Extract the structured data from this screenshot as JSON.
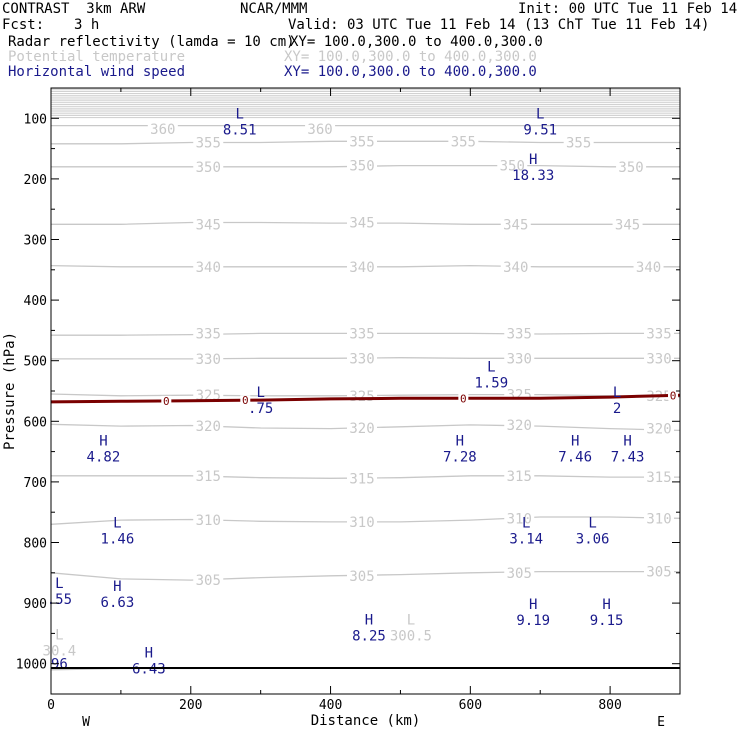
{
  "header": {
    "model": "CONTRAST  3km ARW",
    "org": "NCAR/MMM",
    "init": "Init: 00 UTC Tue 11 Feb 14",
    "fcst_label": "Fcst:",
    "fcst_value": "3 h",
    "valid": "Valid: 03 UTC Tue 11 Feb 14 (13 ChT Tue 11 Feb 14)",
    "fields": [
      {
        "name": "Radar reflectivity (lamda = 10 cm)",
        "xy": "XY= 100.0,300.0 to 400.0,300.0",
        "color": "#000000"
      },
      {
        "name": "Potential temperature",
        "xy": "XY= 100.0,300.0 to 400.0,300.0",
        "color": "#c8c8c8"
      },
      {
        "name": "Horizontal wind speed",
        "xy": "XY= 100.0,300.0 to 400.0,300.0",
        "color": "#1a1a8c"
      }
    ]
  },
  "chart_data": {
    "type": "contour-cross-section",
    "xlabel": "Distance (km)",
    "ylabel": "Pressure (hPa)",
    "xlim": [
      0,
      900
    ],
    "ylim": [
      1050,
      50
    ],
    "xticks": [
      0,
      200,
      400,
      600,
      800
    ],
    "yticks": [
      100,
      200,
      300,
      400,
      500,
      600,
      700,
      800,
      900,
      1000
    ],
    "left_end": "W",
    "right_end": "E",
    "theta_contours": [
      {
        "level": 300,
        "p": [
          1010,
          1008,
          1008,
          1007,
          1007,
          1007,
          1007,
          1007,
          1007,
          1007
        ]
      },
      {
        "level": 305,
        "p": [
          850,
          860,
          862,
          858,
          855,
          853,
          850,
          848,
          848,
          848
        ]
      },
      {
        "level": 310,
        "p": [
          770,
          763,
          762,
          765,
          766,
          766,
          763,
          758,
          758,
          760
        ]
      },
      {
        "level": 315,
        "p": [
          690,
          690,
          690,
          693,
          694,
          693,
          690,
          690,
          692,
          692
        ]
      },
      {
        "level": 320,
        "p": [
          605,
          608,
          607,
          611,
          612,
          609,
          606,
          608,
          612,
          615
        ]
      },
      {
        "level": 325,
        "p": [
          555,
          558,
          557,
          558,
          558,
          557,
          556,
          556,
          558,
          560
        ]
      },
      {
        "level": 330,
        "p": [
          497,
          497,
          497,
          496,
          496,
          495,
          496,
          496,
          496,
          496
        ]
      },
      {
        "level": 335,
        "p": [
          458,
          458,
          457,
          455,
          455,
          455,
          455,
          456,
          455,
          455
        ]
      },
      {
        "level": 340,
        "p": [
          343,
          345,
          345,
          345,
          345,
          345,
          343,
          345,
          345,
          345
        ]
      },
      {
        "level": 345,
        "p": [
          275,
          275,
          272,
          272,
          273,
          273,
          275,
          275,
          275,
          275
        ]
      },
      {
        "level": 350,
        "p": [
          180,
          180,
          180,
          180,
          180,
          178,
          178,
          178,
          180,
          180
        ]
      },
      {
        "level": 355,
        "p": [
          142,
          142,
          140,
          140,
          138,
          138,
          138,
          140,
          140,
          140
        ]
      },
      {
        "level": 360,
        "p": [
          112,
          112,
          112,
          112,
          112,
          112,
          112,
          112,
          112,
          112
        ]
      }
    ],
    "theta_labels": [
      {
        "text": "360",
        "x": 160,
        "p": 118
      },
      {
        "text": "360",
        "x": 385,
        "p": 118
      },
      {
        "text": "355",
        "x": 225,
        "p": 140
      },
      {
        "text": "355",
        "x": 445,
        "p": 138
      },
      {
        "text": "355",
        "x": 590,
        "p": 138
      },
      {
        "text": "355",
        "x": 755,
        "p": 140
      },
      {
        "text": "350",
        "x": 225,
        "p": 180
      },
      {
        "text": "350",
        "x": 445,
        "p": 178
      },
      {
        "text": "350",
        "x": 660,
        "p": 178
      },
      {
        "text": "350",
        "x": 830,
        "p": 180
      },
      {
        "text": "345",
        "x": 225,
        "p": 275
      },
      {
        "text": "345",
        "x": 445,
        "p": 272
      },
      {
        "text": "345",
        "x": 665,
        "p": 275
      },
      {
        "text": "345",
        "x": 825,
        "p": 275
      },
      {
        "text": "340",
        "x": 225,
        "p": 345
      },
      {
        "text": "340",
        "x": 445,
        "p": 345
      },
      {
        "text": "340",
        "x": 665,
        "p": 345
      },
      {
        "text": "340",
        "x": 855,
        "p": 345
      },
      {
        "text": "335",
        "x": 225,
        "p": 455
      },
      {
        "text": "335",
        "x": 445,
        "p": 455
      },
      {
        "text": "335",
        "x": 670,
        "p": 455
      },
      {
        "text": "335",
        "x": 870,
        "p": 455
      },
      {
        "text": "330",
        "x": 225,
        "p": 497
      },
      {
        "text": "330",
        "x": 445,
        "p": 496
      },
      {
        "text": "330",
        "x": 670,
        "p": 496
      },
      {
        "text": "330",
        "x": 870,
        "p": 496
      },
      {
        "text": "325",
        "x": 225,
        "p": 557
      },
      {
        "text": "325",
        "x": 445,
        "p": 558
      },
      {
        "text": "325",
        "x": 670,
        "p": 556
      },
      {
        "text": "325",
        "x": 870,
        "p": 558
      },
      {
        "text": "320",
        "x": 225,
        "p": 608
      },
      {
        "text": "320",
        "x": 445,
        "p": 611
      },
      {
        "text": "320",
        "x": 670,
        "p": 606
      },
      {
        "text": "320",
        "x": 870,
        "p": 612
      },
      {
        "text": "315",
        "x": 225,
        "p": 690
      },
      {
        "text": "315",
        "x": 445,
        "p": 694
      },
      {
        "text": "315",
        "x": 670,
        "p": 690
      },
      {
        "text": "315",
        "x": 870,
        "p": 692
      },
      {
        "text": "310",
        "x": 225,
        "p": 763
      },
      {
        "text": "310",
        "x": 445,
        "p": 766
      },
      {
        "text": "310",
        "x": 670,
        "p": 760
      },
      {
        "text": "310",
        "x": 870,
        "p": 760
      },
      {
        "text": "305",
        "x": 225,
        "p": 862
      },
      {
        "text": "305",
        "x": 445,
        "p": 855
      },
      {
        "text": "305",
        "x": 670,
        "p": 850
      },
      {
        "text": "305",
        "x": 870,
        "p": 848
      }
    ],
    "radar_zero_line": {
      "x": [
        0,
        100,
        200,
        300,
        400,
        500,
        600,
        700,
        800,
        900
      ],
      "p": [
        568,
        567,
        566,
        565,
        563,
        562,
        562,
        562,
        560,
        557
      ]
    },
    "radar_zero_labels": [
      {
        "text": "0",
        "x": 165
      },
      {
        "text": "0",
        "x": 278
      },
      {
        "text": "0",
        "x": 590
      },
      {
        "text": "0",
        "x": 890
      }
    ],
    "wind_extrema": [
      {
        "type": "L",
        "value": "8.51",
        "x": 270,
        "p": 100
      },
      {
        "type": "L",
        "value": "9.51",
        "x": 700,
        "p": 100
      },
      {
        "type": "H",
        "value": "18.33",
        "x": 690,
        "p": 175
      },
      {
        "type": "L",
        "value": "1.59",
        "x": 630,
        "p": 518
      },
      {
        "type": "L",
        "value": ".75",
        "x": 300,
        "p": 560
      },
      {
        "type": "L",
        "value": "2",
        "x": 810,
        "p": 560
      },
      {
        "type": "H",
        "value": "4.82",
        "x": 75,
        "p": 640
      },
      {
        "type": "H",
        "value": "7.28",
        "x": 585,
        "p": 640
      },
      {
        "type": "H",
        "value": "7.46",
        "x": 750,
        "p": 640
      },
      {
        "type": "H",
        "value": "7.43",
        "x": 825,
        "p": 640
      },
      {
        "type": "L",
        "value": "1.46",
        "x": 95,
        "p": 775
      },
      {
        "type": "L",
        "value": "3.14",
        "x": 680,
        "p": 775
      },
      {
        "type": "L",
        "value": "3.06",
        "x": 775,
        "p": 775
      },
      {
        "type": "H",
        "value": "6.63",
        "x": 95,
        "p": 880
      },
      {
        "type": "H",
        "value": "9.19",
        "x": 690,
        "p": 910
      },
      {
        "type": "H",
        "value": "9.15",
        "x": 795,
        "p": 910
      },
      {
        "type": "H",
        "value": "8.25",
        "x": 455,
        "p": 935
      },
      {
        "type": "H",
        "value": "6.43",
        "x": 140,
        "p": 990
      },
      {
        "type": "L",
        "value": ".55",
        "x": 12,
        "p": 875
      }
    ],
    "theta_extrema": [
      {
        "type": "L",
        "value": "300.5",
        "x": 515,
        "p": 935
      },
      {
        "type": "L",
        "value": "30.4",
        "x": 12,
        "p": 960
      }
    ],
    "edge_values": [
      {
        "text": "96",
        "x": 12,
        "p": 1000,
        "color": "#1a1a8c"
      }
    ],
    "colors": {
      "theta": "#c8c8c8",
      "wind": "#1a1a8c",
      "radar_zero": "#7a0000",
      "top_band": "#d2d2d2"
    }
  }
}
